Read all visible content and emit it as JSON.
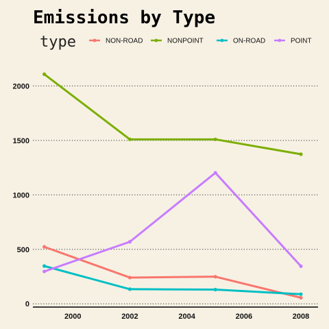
{
  "chart_data": {
    "type": "line",
    "title": "Emissions by Type",
    "legend": {
      "title": "type",
      "position": "top"
    },
    "x": [
      1999,
      2002,
      2005,
      2008
    ],
    "x_ticks": [
      "2000",
      "2002",
      "2004",
      "2006",
      "2008"
    ],
    "y_ticks": [
      "0",
      "500",
      "1000",
      "1500",
      "2000"
    ],
    "xlim": [
      1998.6,
      2008.6
    ],
    "ylim": [
      -30,
      2210
    ],
    "grid": {
      "horizontal": true,
      "style": "dotted"
    },
    "series": [
      {
        "name": "NON-ROAD",
        "color": "#F8766D",
        "values": [
          522.9,
          240.8,
          248.9,
          55.8
        ]
      },
      {
        "name": "NONPOINT",
        "color": "#7CAE00",
        "values": [
          2107.6,
          1509.5,
          1509.5,
          1373.2
        ]
      },
      {
        "name": "ON-ROAD",
        "color": "#00BFC4",
        "values": [
          346.8,
          134.3,
          130.4,
          88.3
        ]
      },
      {
        "name": "POINT",
        "color": "#C77CFF",
        "values": [
          296.8,
          569.3,
          1202.5,
          344.98
        ]
      }
    ]
  }
}
